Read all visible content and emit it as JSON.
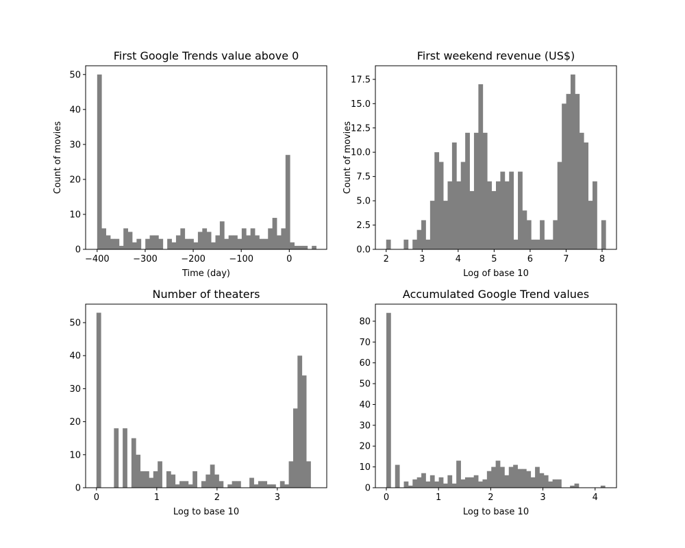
{
  "figure": {
    "background": "#ffffff",
    "bar_color": "#808080"
  },
  "chart_data": [
    {
      "type": "bar",
      "title": "First Google Trends value above 0",
      "xlabel": "Time (day)",
      "ylabel": "Count of movies",
      "xlim": [
        -424,
        78
      ],
      "ylim": [
        0,
        52.5
      ],
      "xticks": [
        -400,
        -300,
        -200,
        -100,
        0
      ],
      "xtick_labels": [
        "−400",
        "−300",
        "−200",
        "−100",
        "0"
      ],
      "yticks": [
        0,
        10,
        20,
        30,
        40,
        50
      ],
      "ytick_labels": [
        "0",
        "10",
        "20",
        "30",
        "40",
        "50"
      ],
      "grid": false,
      "bin_start": -400,
      "bin_width": 9.12,
      "values": [
        50,
        6,
        4,
        3,
        3,
        1,
        6,
        5,
        2,
        3,
        0,
        3,
        4,
        4,
        3,
        0,
        3,
        2,
        4,
        6,
        3,
        3,
        2,
        5,
        6,
        5,
        2,
        4,
        8,
        3,
        4,
        4,
        3,
        6,
        4,
        6,
        4,
        3,
        3,
        6,
        9,
        4,
        6,
        27,
        2,
        1,
        1,
        1,
        0,
        1
      ]
    },
    {
      "type": "bar",
      "title": "First weekend revenue (US$)",
      "xlabel": "Log of base 10",
      "ylabel": "Count of movies",
      "xlim": [
        1.7,
        8.4
      ],
      "ylim": [
        0,
        18.9
      ],
      "xticks": [
        2,
        3,
        4,
        5,
        6,
        7,
        8
      ],
      "xtick_labels": [
        "2",
        "3",
        "4",
        "5",
        "6",
        "7",
        "8"
      ],
      "yticks": [
        0,
        2.5,
        5,
        7.5,
        10,
        12.5,
        15,
        17.5
      ],
      "ytick_labels": [
        "0.0",
        "2.5",
        "5.0",
        "7.5",
        "10.0",
        "12.5",
        "15.0",
        "17.5"
      ],
      "grid": false,
      "bin_start": 2.0,
      "bin_width": 0.122,
      "values": [
        1,
        0,
        0,
        0,
        1,
        0,
        1,
        2,
        3,
        1,
        5,
        10,
        9,
        5,
        7,
        11,
        7,
        9,
        12,
        6,
        12,
        17,
        12,
        7,
        6,
        7,
        8,
        7,
        8,
        1,
        8,
        4,
        3,
        1,
        1,
        3,
        1,
        1,
        3,
        9,
        15,
        16,
        18,
        16,
        12,
        11,
        5,
        7,
        0,
        3
      ]
    },
    {
      "type": "bar",
      "title": "Number of theaters",
      "xlabel": "Log to base 10",
      "ylabel": "",
      "xlim": [
        -0.18,
        3.82
      ],
      "ylim": [
        0,
        55.6
      ],
      "xticks": [
        0,
        1,
        2,
        3
      ],
      "xtick_labels": [
        "0",
        "1",
        "2",
        "3"
      ],
      "yticks": [
        0,
        10,
        20,
        30,
        40,
        50
      ],
      "ytick_labels": [
        "0",
        "10",
        "20",
        "30",
        "40",
        "50"
      ],
      "grid": false,
      "bin_start": 0.0,
      "bin_width": 0.0725,
      "values": [
        53,
        0,
        0,
        0,
        18,
        0,
        18,
        0,
        15,
        10,
        5,
        5,
        3,
        5,
        8,
        0,
        5,
        4,
        1,
        2,
        2,
        1,
        5,
        0,
        2,
        4,
        7,
        4,
        2,
        0,
        1,
        2,
        2,
        0,
        0,
        3,
        1,
        2,
        2,
        1,
        1,
        0,
        2,
        1,
        8,
        24,
        40,
        34,
        8
      ]
    },
    {
      "type": "bar",
      "title": "Accumulated Google Trend values",
      "xlabel": "Log to base 10",
      "ylabel": "",
      "xlim": [
        -0.21,
        4.41
      ],
      "ylim": [
        0,
        88.2
      ],
      "xticks": [
        0,
        1,
        2,
        3,
        4
      ],
      "xtick_labels": [
        "0",
        "1",
        "2",
        "3",
        "4"
      ],
      "yticks": [
        0,
        10,
        20,
        30,
        40,
        50,
        60,
        70,
        80
      ],
      "ytick_labels": [
        "0",
        "10",
        "20",
        "30",
        "40",
        "50",
        "60",
        "70",
        "80"
      ],
      "grid": false,
      "bin_start": 0.0,
      "bin_width": 0.0838,
      "values": [
        84,
        0,
        11,
        0,
        3,
        1,
        4,
        5,
        7,
        3,
        6,
        3,
        5,
        2,
        6,
        2,
        13,
        4,
        5,
        5,
        6,
        3,
        4,
        8,
        10,
        13,
        10,
        6,
        10,
        11,
        9,
        9,
        8,
        5,
        10,
        7,
        6,
        3,
        4,
        4,
        0,
        0,
        1,
        2,
        0,
        0,
        0,
        0,
        0,
        1
      ]
    }
  ]
}
